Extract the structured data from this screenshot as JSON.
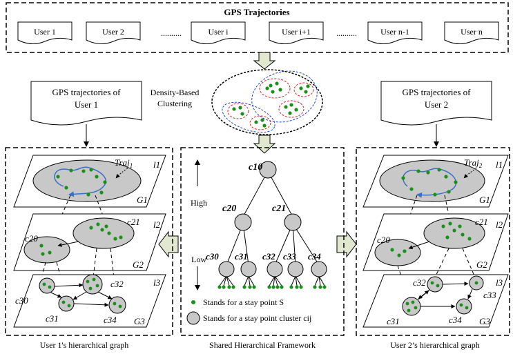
{
  "header": {
    "title": "GPS Trajectories",
    "users": [
      "User 1",
      "User 2",
      "User i",
      "User i+1",
      "User n-1",
      "User n"
    ],
    "ellipsis": ".........."
  },
  "clustering": {
    "label_line1": "Density-Based",
    "label_line2": "Clustering"
  },
  "left_doc": {
    "line1": "GPS trajectories of",
    "line2": "User 1"
  },
  "right_doc": {
    "line1": "GPS trajectories of",
    "line2": "User 2"
  },
  "left_graph": {
    "traj": "Traj",
    "traj_sub": "1",
    "levels": [
      "l1",
      "l2",
      "l3"
    ],
    "graphs": [
      "G1",
      "G2",
      "G3"
    ],
    "clusters": [
      "c20",
      "c21",
      "c30",
      "c31",
      "c32",
      "c34"
    ],
    "caption": "User 1's hierarchical graph"
  },
  "right_graph": {
    "traj": "Traj",
    "traj_sub": "2",
    "levels": [
      "l1",
      "l2",
      "l3"
    ],
    "graphs": [
      "G1",
      "G2",
      "G3"
    ],
    "clusters": [
      "c20",
      "c21",
      "c31",
      "c32",
      "c33",
      "c34"
    ],
    "caption": "User 2’s hierarchical graph"
  },
  "framework": {
    "nodes": [
      "c10",
      "c20",
      "c21",
      "c30",
      "c31",
      "c32",
      "c33",
      "c34"
    ],
    "high": "High",
    "low": "Low",
    "legend_point": "Stands for a stay point S",
    "legend_cluster": "Stands for a stay point cluster cij",
    "caption": "Shared Hierarchical Framework"
  },
  "colors": {
    "point_green": "#1a8f1a",
    "cluster_gray": "#c8c8c8",
    "trajectory_blue": "#3a6fc4",
    "cluster_red": "#e02020",
    "cluster_blue": "#2040e0",
    "arrow_fill": "#e2e7cf"
  }
}
